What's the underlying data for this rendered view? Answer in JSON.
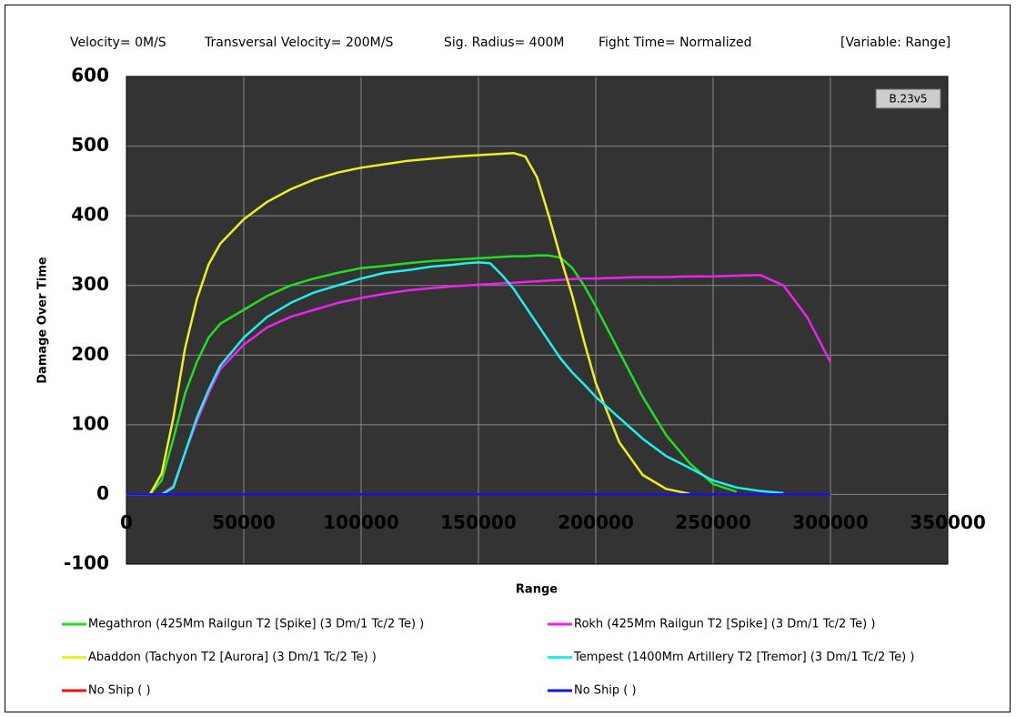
{
  "chart_data": {
    "type": "line",
    "subtitle_items": [
      "Velocity= 0M/S",
      "Transversal Velocity= 200M/S",
      "Sig. Radius= 400M",
      "Fight Time= Normalized",
      "[Variable: Range]"
    ],
    "badge": "B.23v5",
    "x_label": "Range",
    "y_label": "Damage Over Time",
    "xlim": [
      0,
      350000
    ],
    "ylim": [
      -100,
      600
    ],
    "xticks": [
      0,
      50000,
      100000,
      150000,
      200000,
      250000,
      300000,
      350000
    ],
    "yticks": [
      -100,
      0,
      100,
      200,
      300,
      400,
      500,
      600
    ],
    "grid": true,
    "x": [
      0,
      10000,
      15000,
      20000,
      25000,
      30000,
      35000,
      40000,
      50000,
      60000,
      70000,
      80000,
      90000,
      100000,
      110000,
      120000,
      130000,
      140000,
      145000,
      150000,
      155000,
      160000,
      165000,
      170000,
      175000,
      180000,
      185000,
      190000,
      195000,
      200000,
      210000,
      220000,
      230000,
      240000,
      250000,
      260000,
      270000,
      280000,
      290000,
      300000
    ],
    "series": [
      {
        "name": "Megathron (425Mm Railgun T2 [Spike] (3 Dm/1 Tc/2 Te) )",
        "color": "#22dd22",
        "values": [
          0,
          0,
          20,
          80,
          145,
          190,
          225,
          245,
          265,
          285,
          300,
          310,
          318,
          325,
          328,
          332,
          335,
          337,
          338,
          339,
          340,
          341,
          342,
          342,
          343,
          343,
          340,
          325,
          300,
          270,
          205,
          140,
          85,
          45,
          15,
          4,
          null,
          null,
          null,
          null
        ]
      },
      {
        "name": "Rokh (425Mm Railgun T2 [Spike] (3 Dm/1 Tc/2 Te) )",
        "color": "#ee22ee",
        "values": [
          0,
          0,
          0,
          12,
          60,
          105,
          145,
          180,
          215,
          240,
          255,
          265,
          275,
          282,
          288,
          293,
          296,
          299,
          300,
          301,
          302,
          303,
          304,
          305,
          306,
          307,
          308,
          309,
          310,
          310,
          311,
          312,
          312,
          313,
          313,
          314,
          315,
          300,
          255,
          190
        ]
      },
      {
        "name": "Abaddon (Tachyon T2 [Aurora] (3 Dm/1 Tc/2 Te) )",
        "color": "#eeee22",
        "values": [
          0,
          0,
          30,
          110,
          210,
          280,
          330,
          360,
          395,
          420,
          438,
          452,
          462,
          469,
          474,
          479,
          482,
          485,
          486,
          487,
          488,
          489,
          490,
          485,
          455,
          400,
          340,
          285,
          220,
          160,
          75,
          28,
          8,
          1,
          null,
          null,
          null,
          null,
          null,
          null
        ]
      },
      {
        "name": "Tempest (1400Mm Artillery T2 [Tremor] (3 Dm/1 Tc/2 Te) )",
        "color": "#22eeee",
        "values": [
          0,
          0,
          0,
          10,
          60,
          110,
          150,
          185,
          225,
          255,
          275,
          290,
          300,
          310,
          318,
          322,
          327,
          330,
          332,
          333,
          332,
          315,
          295,
          270,
          245,
          220,
          195,
          175,
          158,
          140,
          110,
          80,
          55,
          38,
          20,
          10,
          5,
          2,
          null,
          null
        ]
      },
      {
        "name": "No Ship ( )",
        "color": "#ee1111",
        "values": [
          0,
          0,
          0,
          0,
          0,
          0,
          0,
          0,
          0,
          0,
          0,
          0,
          0,
          0,
          0,
          0,
          0,
          0,
          0,
          0,
          0,
          0,
          0,
          0,
          0,
          0,
          0,
          0,
          0,
          0,
          0,
          0,
          0,
          0,
          0,
          0,
          0,
          0,
          0,
          0
        ]
      },
      {
        "name": "No Ship ( )",
        "color": "#1111ee",
        "values": [
          0,
          0,
          0,
          0,
          0,
          0,
          0,
          0,
          0,
          0,
          0,
          0,
          0,
          0,
          0,
          0,
          0,
          0,
          0,
          0,
          0,
          0,
          0,
          0,
          0,
          0,
          0,
          0,
          0,
          0,
          0,
          0,
          0,
          0,
          0,
          0,
          0,
          0,
          0,
          0
        ]
      }
    ]
  }
}
